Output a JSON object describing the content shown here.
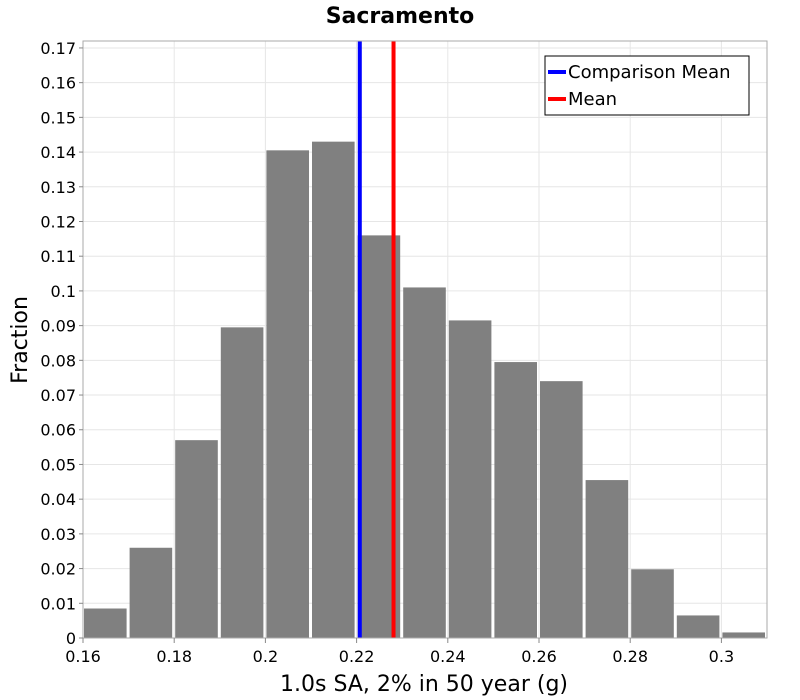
{
  "chart_data": {
    "type": "bar",
    "title": "Sacramento",
    "xlabel": "1.0s SA, 2% in 50 year (g)",
    "ylabel": "Fraction",
    "xlim": [
      0.16,
      0.31
    ],
    "ylim": [
      0,
      0.172
    ],
    "grid": true,
    "bin_width": 0.01,
    "bin_starts": [
      0.16,
      0.17,
      0.18,
      0.19,
      0.2,
      0.21,
      0.22,
      0.23,
      0.24,
      0.25,
      0.26,
      0.27,
      0.28,
      0.29,
      0.3
    ],
    "values": [
      0.0085,
      0.026,
      0.057,
      0.0895,
      0.1405,
      0.143,
      0.116,
      0.101,
      0.0915,
      0.0795,
      0.074,
      0.0455,
      0.0198,
      0.0065,
      0.0016
    ],
    "bar_color": "#808080",
    "x_ticks": [
      "0.16",
      "0.18",
      "0.2",
      "0.22",
      "0.24",
      "0.26",
      "0.28",
      "0.3"
    ],
    "x_tick_values": [
      0.16,
      0.18,
      0.2,
      0.22,
      0.24,
      0.26,
      0.28,
      0.3
    ],
    "y_ticks": [
      "0",
      "0.01",
      "0.02",
      "0.03",
      "0.04",
      "0.05",
      "0.06",
      "0.07",
      "0.08",
      "0.09",
      "0.1",
      "0.11",
      "0.12",
      "0.13",
      "0.14",
      "0.15",
      "0.16",
      "0.17"
    ],
    "y_tick_values": [
      0,
      0.01,
      0.02,
      0.03,
      0.04,
      0.05,
      0.06,
      0.07,
      0.08,
      0.09,
      0.1,
      0.11,
      0.12,
      0.13,
      0.14,
      0.15,
      0.16,
      0.17
    ],
    "vlines": [
      {
        "name": "Comparison Mean",
        "x": 0.2207,
        "color": "#0000ff"
      },
      {
        "name": "Mean",
        "x": 0.2281,
        "color": "#ff0000"
      }
    ],
    "legend": {
      "position": "top-right",
      "entries": [
        {
          "label": "Comparison Mean",
          "color": "#0000ff"
        },
        {
          "label": "Mean",
          "color": "#ff0000"
        }
      ]
    }
  }
}
